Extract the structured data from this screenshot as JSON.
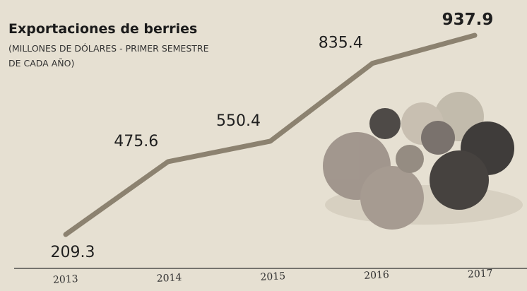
{
  "chart_data": {
    "type": "line",
    "title": "Exportaciones de berries",
    "subtitle": "(MILLONES DE DÓLARES - PRIMER SEMESTRE DE CADA AÑO)",
    "categories": [
      "2013",
      "2014",
      "2015",
      "2016",
      "2017"
    ],
    "values": [
      209.3,
      475.6,
      550.4,
      835.4,
      937.9
    ],
    "color": "#8c8270"
  }
}
